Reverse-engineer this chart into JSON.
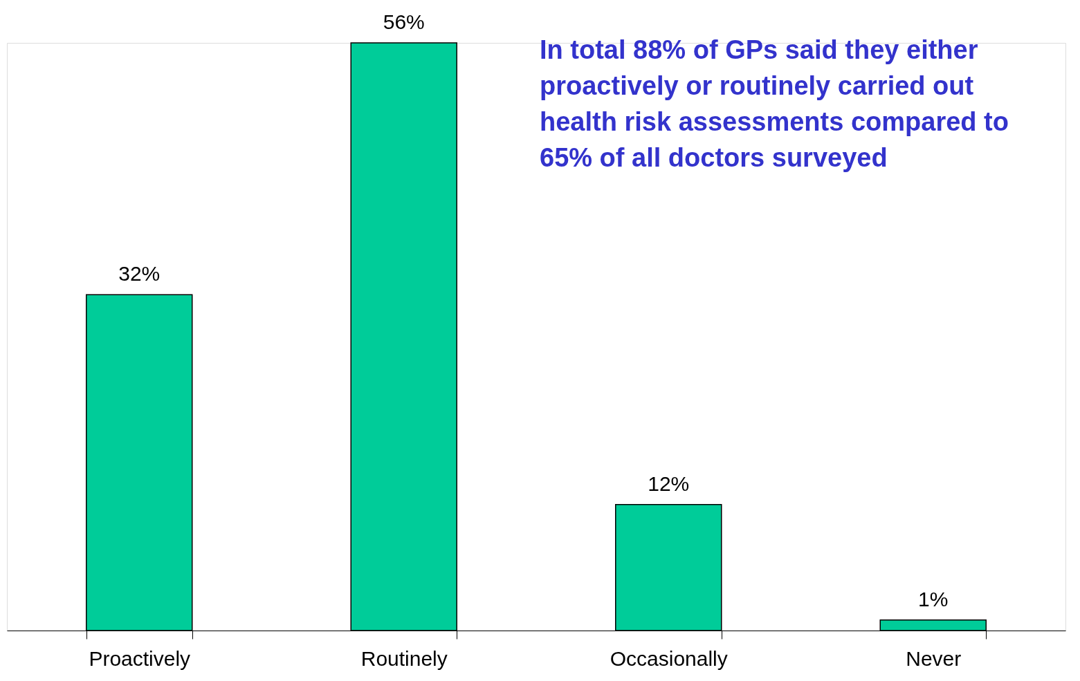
{
  "chart_data": {
    "type": "bar",
    "categories": [
      "Proactively",
      "Routinely",
      "Occasionally",
      "Never"
    ],
    "values": [
      32,
      56,
      12,
      1
    ],
    "value_labels": [
      "32%",
      "56%",
      "12%",
      "1%"
    ],
    "color": "#00cc99",
    "grid": false,
    "annotations": [
      "In total 88% of GPs said they either proactively or routinely carried out health risk assessments compared to 65% of all doctors surveyed"
    ]
  }
}
